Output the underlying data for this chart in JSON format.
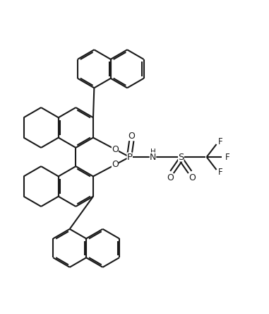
{
  "bg": "#ffffff",
  "lc": "#1a1a1a",
  "lw": 1.5,
  "fs": 8.5,
  "figsize": [
    3.81,
    4.44
  ],
  "dpi": 100,
  "xlim": [
    -0.05,
    1.05
  ],
  "ylim": [
    -0.05,
    1.05
  ]
}
